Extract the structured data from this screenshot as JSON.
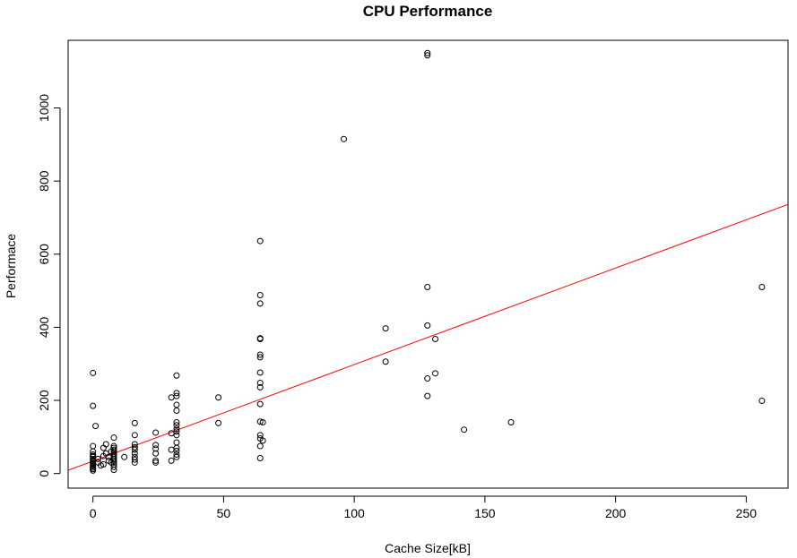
{
  "chart_data": {
    "type": "scatter",
    "title": "CPU Performance",
    "xlabel": "Cache Size[kB]",
    "ylabel": "Performace",
    "xlim": [
      -9.5,
      266
    ],
    "ylim": [
      -40,
      1185
    ],
    "x_ticks": [
      0,
      50,
      100,
      150,
      200,
      250
    ],
    "y_ticks": [
      0,
      200,
      400,
      600,
      800,
      1000
    ],
    "grid": false,
    "legend": "none",
    "point_color": "#000000",
    "line_color": "#ff0000",
    "regression_line": {
      "intercept": 34,
      "slope": 2.64
    },
    "points": [
      {
        "x": 0,
        "y": 275
      },
      {
        "x": 0,
        "y": 185
      },
      {
        "x": 1,
        "y": 130
      },
      {
        "x": 0,
        "y": 75
      },
      {
        "x": 0,
        "y": 60
      },
      {
        "x": 0,
        "y": 52
      },
      {
        "x": 0,
        "y": 48
      },
      {
        "x": 0,
        "y": 45
      },
      {
        "x": 0,
        "y": 40
      },
      {
        "x": 0,
        "y": 36
      },
      {
        "x": 0,
        "y": 32
      },
      {
        "x": 0,
        "y": 28
      },
      {
        "x": 0,
        "y": 24
      },
      {
        "x": 0,
        "y": 20
      },
      {
        "x": 0,
        "y": 16
      },
      {
        "x": 0,
        "y": 12
      },
      {
        "x": 0,
        "y": 8
      },
      {
        "x": 2,
        "y": 40
      },
      {
        "x": 2,
        "y": 30
      },
      {
        "x": 3,
        "y": 22
      },
      {
        "x": 4,
        "y": 70
      },
      {
        "x": 4,
        "y": 48
      },
      {
        "x": 4,
        "y": 25
      },
      {
        "x": 5,
        "y": 80
      },
      {
        "x": 5,
        "y": 55
      },
      {
        "x": 6,
        "y": 45
      },
      {
        "x": 6,
        "y": 35
      },
      {
        "x": 7,
        "y": 60
      },
      {
        "x": 7,
        "y": 30
      },
      {
        "x": 8,
        "y": 98
      },
      {
        "x": 8,
        "y": 75
      },
      {
        "x": 8,
        "y": 70
      },
      {
        "x": 8,
        "y": 65
      },
      {
        "x": 8,
        "y": 60
      },
      {
        "x": 8,
        "y": 55
      },
      {
        "x": 8,
        "y": 50
      },
      {
        "x": 8,
        "y": 45
      },
      {
        "x": 8,
        "y": 40
      },
      {
        "x": 8,
        "y": 35
      },
      {
        "x": 8,
        "y": 30
      },
      {
        "x": 8,
        "y": 25
      },
      {
        "x": 8,
        "y": 18
      },
      {
        "x": 8,
        "y": 10
      },
      {
        "x": 12,
        "y": 45
      },
      {
        "x": 16,
        "y": 138
      },
      {
        "x": 16,
        "y": 105
      },
      {
        "x": 16,
        "y": 80
      },
      {
        "x": 16,
        "y": 72
      },
      {
        "x": 16,
        "y": 65
      },
      {
        "x": 16,
        "y": 55
      },
      {
        "x": 16,
        "y": 45
      },
      {
        "x": 16,
        "y": 38
      },
      {
        "x": 16,
        "y": 30
      },
      {
        "x": 24,
        "y": 112
      },
      {
        "x": 24,
        "y": 78
      },
      {
        "x": 24,
        "y": 68
      },
      {
        "x": 24,
        "y": 55
      },
      {
        "x": 24,
        "y": 35
      },
      {
        "x": 24,
        "y": 30
      },
      {
        "x": 30,
        "y": 208
      },
      {
        "x": 30,
        "y": 110
      },
      {
        "x": 30,
        "y": 65
      },
      {
        "x": 30,
        "y": 35
      },
      {
        "x": 32,
        "y": 268
      },
      {
        "x": 32,
        "y": 220
      },
      {
        "x": 32,
        "y": 212
      },
      {
        "x": 32,
        "y": 188
      },
      {
        "x": 32,
        "y": 172
      },
      {
        "x": 32,
        "y": 140
      },
      {
        "x": 32,
        "y": 132
      },
      {
        "x": 32,
        "y": 122
      },
      {
        "x": 32,
        "y": 115
      },
      {
        "x": 32,
        "y": 105
      },
      {
        "x": 32,
        "y": 85
      },
      {
        "x": 32,
        "y": 70
      },
      {
        "x": 32,
        "y": 62
      },
      {
        "x": 32,
        "y": 52
      },
      {
        "x": 32,
        "y": 45
      },
      {
        "x": 48,
        "y": 208
      },
      {
        "x": 48,
        "y": 138
      },
      {
        "x": 64,
        "y": 636
      },
      {
        "x": 64,
        "y": 488
      },
      {
        "x": 64,
        "y": 465
      },
      {
        "x": 64,
        "y": 370
      },
      {
        "x": 64,
        "y": 368
      },
      {
        "x": 64,
        "y": 325
      },
      {
        "x": 64,
        "y": 318
      },
      {
        "x": 64,
        "y": 276
      },
      {
        "x": 64,
        "y": 248
      },
      {
        "x": 64,
        "y": 236
      },
      {
        "x": 64,
        "y": 190
      },
      {
        "x": 64,
        "y": 142
      },
      {
        "x": 64,
        "y": 105
      },
      {
        "x": 64,
        "y": 96
      },
      {
        "x": 64,
        "y": 75
      },
      {
        "x": 64,
        "y": 42
      },
      {
        "x": 65,
        "y": 140
      },
      {
        "x": 65,
        "y": 90
      },
      {
        "x": 96,
        "y": 915
      },
      {
        "x": 112,
        "y": 397
      },
      {
        "x": 112,
        "y": 306
      },
      {
        "x": 128,
        "y": 1150
      },
      {
        "x": 128,
        "y": 1144
      },
      {
        "x": 128,
        "y": 510
      },
      {
        "x": 128,
        "y": 405
      },
      {
        "x": 128,
        "y": 260
      },
      {
        "x": 128,
        "y": 212
      },
      {
        "x": 131,
        "y": 368
      },
      {
        "x": 131,
        "y": 274
      },
      {
        "x": 142,
        "y": 120
      },
      {
        "x": 160,
        "y": 140
      },
      {
        "x": 256,
        "y": 510
      },
      {
        "x": 256,
        "y": 199
      }
    ]
  }
}
